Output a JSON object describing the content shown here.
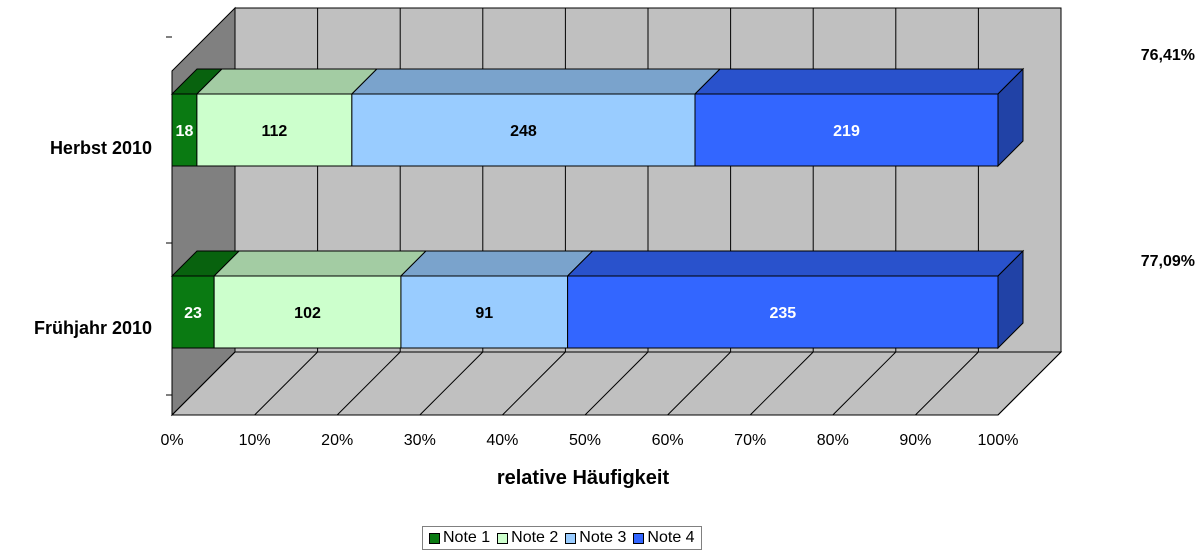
{
  "chart_data": {
    "type": "bar",
    "stacked": "percent",
    "orientation": "horizontal",
    "categories": [
      "Herbst 2010",
      "Frühjahr 2010"
    ],
    "series": [
      {
        "name": "Note 1",
        "values": [
          18,
          23
        ],
        "color": "#0a7a12"
      },
      {
        "name": "Note 2",
        "values": [
          112,
          102
        ],
        "color": "#ccffcc"
      },
      {
        "name": "Note 3",
        "values": [
          248,
          91
        ],
        "color": "#99ccff"
      },
      {
        "name": "Note 4",
        "values": [
          219,
          235
        ],
        "color": "#3366ff"
      }
    ],
    "side_labels": [
      "76,41%",
      "77,09%"
    ],
    "xlabel": "relative Häufigkeit",
    "xlim": [
      0,
      100
    ],
    "xticks": [
      "0%",
      "10%",
      "20%",
      "30%",
      "40%",
      "50%",
      "60%",
      "70%",
      "80%",
      "90%",
      "100%"
    ],
    "grid": true,
    "legend_position": "bottom"
  }
}
